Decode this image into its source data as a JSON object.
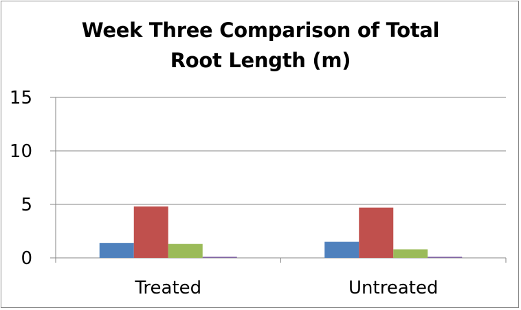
{
  "chart_data": {
    "type": "bar",
    "title_lines": [
      "Week Three Comparison of Total",
      "Root Length (m)"
    ],
    "categories": [
      "Treated",
      "Untreated"
    ],
    "series": [
      {
        "color": "#4f81bd",
        "values": [
          1.4,
          1.5
        ]
      },
      {
        "color": "#c0504d",
        "values": [
          4.8,
          4.7
        ]
      },
      {
        "color": "#9bbb59",
        "values": [
          1.3,
          0.8
        ]
      },
      {
        "color": "#8064a2",
        "values": [
          0.1,
          0.1
        ]
      }
    ],
    "ylim": [
      0,
      15
    ],
    "yticks": [
      0,
      5,
      10,
      15
    ],
    "grid": true,
    "legend": "none"
  }
}
